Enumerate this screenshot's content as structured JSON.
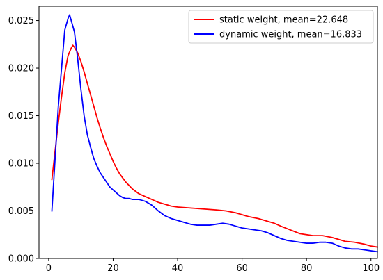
{
  "chart_data": {
    "type": "line",
    "title": "",
    "xlabel": "",
    "ylabel": "",
    "xlim": [
      -3,
      102
    ],
    "ylim": [
      0,
      0.0265
    ],
    "grid": false,
    "legend_position": "upper right",
    "x_ticks": [
      0,
      20,
      40,
      60,
      80,
      100
    ],
    "x_tick_labels": [
      "0",
      "20",
      "40",
      "60",
      "80",
      "100"
    ],
    "y_ticks": [
      0,
      0.005,
      0.01,
      0.015,
      0.02,
      0.025
    ],
    "y_tick_labels": [
      "0.000",
      "0.005",
      "0.010",
      "0.015",
      "0.020",
      "0.025"
    ],
    "series": [
      {
        "name": "static weight, mean=22.648",
        "color": "#ff0000",
        "x": [
          1,
          2,
          3,
          4,
          5,
          6,
          7,
          7.5,
          8,
          9,
          10,
          11,
          12,
          13,
          14,
          15,
          16,
          17,
          18,
          19,
          20,
          21,
          22,
          24,
          26,
          28,
          30,
          32,
          34,
          36,
          38,
          40,
          44,
          48,
          52,
          55,
          58,
          60,
          62,
          65,
          68,
          70,
          72,
          75,
          78,
          80,
          82,
          85,
          88,
          90,
          92,
          95,
          98,
          100,
          102
        ],
        "y": [
          0.0083,
          0.0113,
          0.0143,
          0.017,
          0.0195,
          0.0213,
          0.0221,
          0.0224,
          0.0222,
          0.0216,
          0.0207,
          0.0196,
          0.0184,
          0.0172,
          0.016,
          0.0148,
          0.0137,
          0.0127,
          0.0118,
          0.011,
          0.0102,
          0.0095,
          0.0089,
          0.008,
          0.0073,
          0.0068,
          0.0065,
          0.0062,
          0.0059,
          0.0057,
          0.0055,
          0.0054,
          0.0053,
          0.0052,
          0.0051,
          0.005,
          0.0048,
          0.0046,
          0.0044,
          0.0042,
          0.0039,
          0.0037,
          0.0034,
          0.003,
          0.0026,
          0.0025,
          0.0024,
          0.0024,
          0.0022,
          0.002,
          0.0018,
          0.0017,
          0.0015,
          0.0013,
          0.0012
        ]
      },
      {
        "name": "dynamic weight, mean=16.833",
        "color": "#0000ff",
        "x": [
          1,
          2,
          3,
          4,
          5,
          6,
          6.5,
          7,
          8,
          9,
          10,
          11,
          12,
          13,
          14,
          15,
          16,
          17,
          18,
          19,
          20,
          21,
          22,
          23,
          24,
          25,
          26,
          28,
          30,
          32,
          34,
          36,
          38,
          40,
          42,
          44,
          46,
          48,
          50,
          52,
          54,
          56,
          58,
          60,
          62,
          64,
          66,
          68,
          70,
          72,
          74,
          76,
          78,
          80,
          82,
          84,
          86,
          88,
          90,
          92,
          94,
          96,
          98,
          100,
          102
        ],
        "y": [
          0.005,
          0.0105,
          0.016,
          0.02,
          0.024,
          0.0252,
          0.0256,
          0.025,
          0.0238,
          0.021,
          0.0178,
          0.015,
          0.013,
          0.0117,
          0.0105,
          0.0097,
          0.009,
          0.0085,
          0.008,
          0.0075,
          0.0072,
          0.0069,
          0.0066,
          0.0064,
          0.0063,
          0.0063,
          0.0062,
          0.0062,
          0.006,
          0.0056,
          0.005,
          0.0045,
          0.0042,
          0.004,
          0.0038,
          0.0036,
          0.0035,
          0.0035,
          0.0035,
          0.0036,
          0.0037,
          0.0036,
          0.0034,
          0.0032,
          0.0031,
          0.003,
          0.0029,
          0.0027,
          0.0024,
          0.0021,
          0.0019,
          0.0018,
          0.0017,
          0.0016,
          0.0016,
          0.0017,
          0.0017,
          0.0016,
          0.0013,
          0.0011,
          0.001,
          0.001,
          0.0009,
          0.0008,
          0.0007
        ]
      }
    ]
  }
}
